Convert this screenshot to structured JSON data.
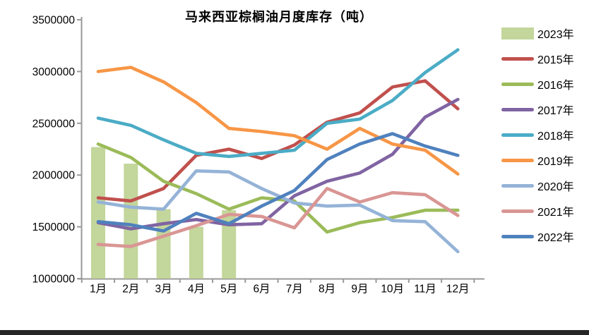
{
  "title": "马来西亚棕榈油月度库存（吨）",
  "chart_data": {
    "type": "combo-bar-line",
    "title": "马来西亚棕榈油月度库存（吨）",
    "unit": "吨",
    "categories": [
      "1月",
      "2月",
      "3月",
      "4月",
      "5月",
      "6月",
      "7月",
      "8月",
      "9月",
      "10月",
      "11月",
      "12月"
    ],
    "y_axis": {
      "min": 1000000,
      "max": 3500000,
      "step": 500000,
      "tick_labels": [
        "3500000",
        "3000000",
        "2500000",
        "2000000",
        "1500000",
        "1000000"
      ]
    },
    "grid": false,
    "legend_position": "right",
    "bar_series": {
      "name": "2023年",
      "color": "#C3D69B",
      "values": [
        2270000,
        2110000,
        1670000,
        1500000,
        1660000,
        null,
        null,
        null,
        null,
        null,
        null,
        null
      ]
    },
    "line_series": [
      {
        "name": "2015年",
        "color": "#C0504D",
        "values": [
          1780000,
          1750000,
          1870000,
          2190000,
          2250000,
          2160000,
          2290000,
          2510000,
          2600000,
          2850000,
          2910000,
          2640000
        ]
      },
      {
        "name": "2016年",
        "color": "#9BBB59",
        "values": [
          2300000,
          2170000,
          1940000,
          1820000,
          1670000,
          1780000,
          1750000,
          1450000,
          1540000,
          1590000,
          1660000,
          1660000
        ]
      },
      {
        "name": "2017年",
        "color": "#8064A2",
        "values": [
          1540000,
          1480000,
          1530000,
          1570000,
          1520000,
          1530000,
          1800000,
          1940000,
          2020000,
          2200000,
          2560000,
          2730000
        ]
      },
      {
        "name": "2018年",
        "color": "#4BACC6",
        "values": [
          2550000,
          2480000,
          2340000,
          2210000,
          2180000,
          2210000,
          2240000,
          2500000,
          2540000,
          2720000,
          2990000,
          3210000
        ]
      },
      {
        "name": "2019年",
        "color": "#F79646",
        "values": [
          3000000,
          3040000,
          2900000,
          2700000,
          2450000,
          2420000,
          2380000,
          2250000,
          2450000,
          2300000,
          2240000,
          2010000
        ]
      },
      {
        "name": "2020年",
        "color": "#95B3D7",
        "values": [
          1740000,
          1690000,
          1670000,
          2040000,
          2030000,
          1870000,
          1730000,
          1700000,
          1710000,
          1560000,
          1550000,
          1260000
        ]
      },
      {
        "name": "2021年",
        "color": "#D99694",
        "values": [
          1330000,
          1310000,
          1410000,
          1510000,
          1620000,
          1600000,
          1490000,
          1870000,
          1740000,
          1830000,
          1810000,
          1610000
        ]
      },
      {
        "name": "2022年",
        "color": "#4F81BD",
        "values": [
          1550000,
          1520000,
          1460000,
          1630000,
          1530000,
          1700000,
          1850000,
          2150000,
          2300000,
          2400000,
          2280000,
          2190000
        ]
      }
    ]
  },
  "legend": [
    {
      "label": "2023年",
      "color": "#C3D69B",
      "swatch": "bar"
    },
    {
      "label": "2015年",
      "color": "#C0504D",
      "swatch": "line"
    },
    {
      "label": "2016年",
      "color": "#9BBB59",
      "swatch": "line"
    },
    {
      "label": "2017年",
      "color": "#8064A2",
      "swatch": "line"
    },
    {
      "label": "2018年",
      "color": "#4BACC6",
      "swatch": "line"
    },
    {
      "label": "2019年",
      "color": "#F79646",
      "swatch": "line"
    },
    {
      "label": "2020年",
      "color": "#95B3D7",
      "swatch": "line"
    },
    {
      "label": "2021年",
      "color": "#D99694",
      "swatch": "line"
    },
    {
      "label": "2022年",
      "color": "#4F81BD",
      "swatch": "line"
    }
  ],
  "axis_color": "#9a9a9a"
}
